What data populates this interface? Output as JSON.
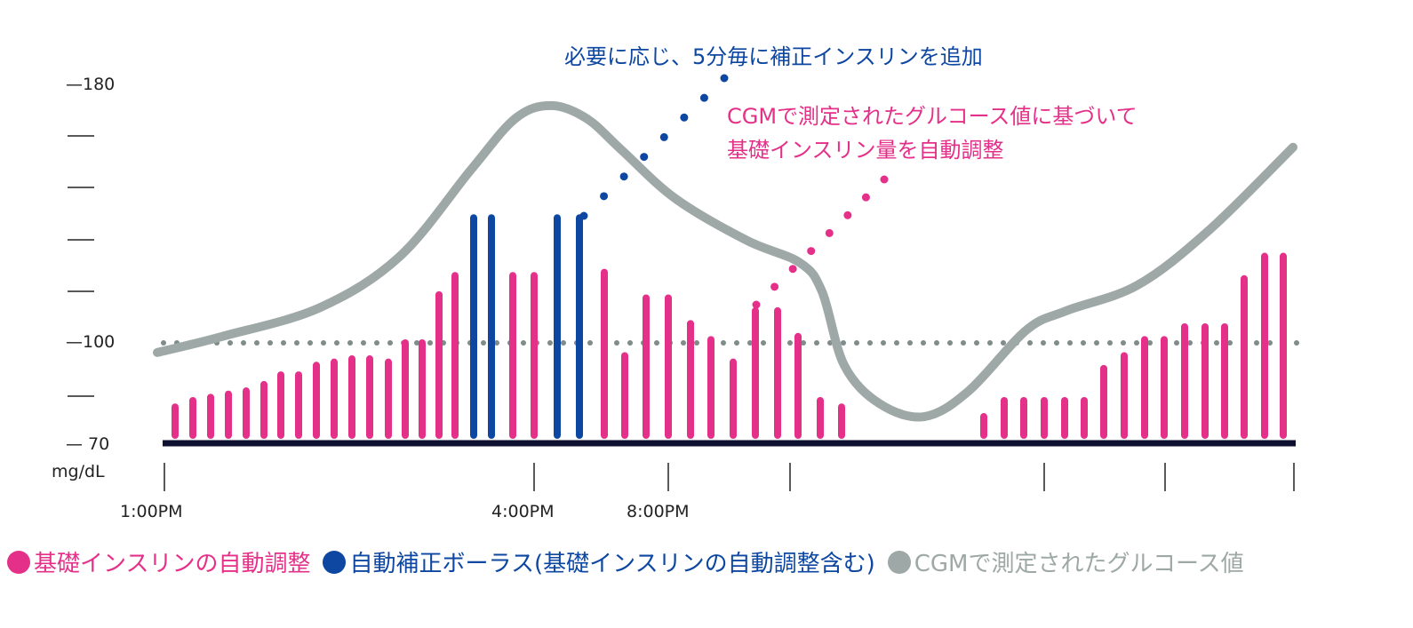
{
  "chart_data": {
    "type": "bar",
    "title": "",
    "ylabel": "mg/dL",
    "ylim": [
      70,
      180
    ],
    "y_tick_labels": [
      "180",
      "100",
      "70"
    ],
    "x_tick_labels": [
      "1:00PM",
      "4:00PM",
      "8:00PM"
    ],
    "reference_line": {
      "value": 100,
      "style": "dotted"
    },
    "series": [
      {
        "name": "基礎インスリンの自動調整",
        "color": "#e5308a",
        "note": "bars (pink); values read on the mg/dL scale"
      },
      {
        "name": "自動補正ボーラス(基礎インスリンの自動調整含む)",
        "color": "#0d47a1"
      },
      {
        "name": "CGMで測定されたグルコース値",
        "color": "#9ea8a6",
        "type": "line",
        "values": [
          97,
          102,
          111,
          127,
          154,
          170,
          174,
          170,
          160,
          145,
          132,
          125,
          116,
          93,
          81,
          77,
          85,
          104,
          110,
          118,
          135,
          161
        ]
      }
    ],
    "bars": [
      {
        "v": 80,
        "s": 0
      },
      {
        "v": 82,
        "s": 0
      },
      {
        "v": 83,
        "s": 0
      },
      {
        "v": 84,
        "s": 0
      },
      {
        "v": 85,
        "s": 0
      },
      {
        "v": 87,
        "s": 0
      },
      {
        "v": 90,
        "s": 0
      },
      {
        "v": 90,
        "s": 0
      },
      {
        "v": 93,
        "s": 0
      },
      {
        "v": 94,
        "s": 0
      },
      {
        "v": 95,
        "s": 0
      },
      {
        "v": 95,
        "s": 0
      },
      {
        "v": 94,
        "s": 0
      },
      {
        "v": 100,
        "s": 0
      },
      {
        "v": 100,
        "s": 0
      },
      {
        "v": 115,
        "s": 0
      },
      {
        "v": 121,
        "s": 0
      },
      {
        "v": 139,
        "s": 1
      },
      {
        "v": 139,
        "s": 1
      },
      {
        "v": 121,
        "s": 0
      },
      {
        "v": 121,
        "s": 0
      },
      {
        "v": 139,
        "s": 1
      },
      {
        "v": 139,
        "s": 1
      },
      {
        "v": 122,
        "s": 0
      },
      {
        "v": 96,
        "s": 0
      },
      {
        "v": 114,
        "s": 0
      },
      {
        "v": 114,
        "s": 0
      },
      {
        "v": 106,
        "s": 0
      },
      {
        "v": 101,
        "s": 0
      },
      {
        "v": 94,
        "s": 0
      },
      {
        "v": 110,
        "s": 0
      },
      {
        "v": 110,
        "s": 0
      },
      {
        "v": 102,
        "s": 0
      },
      {
        "v": 82,
        "s": 0
      },
      {
        "v": 80,
        "s": 0
      },
      {
        "v": 77,
        "s": 0
      },
      {
        "v": 82,
        "s": 0
      },
      {
        "v": 82,
        "s": 0
      },
      {
        "v": 82,
        "s": 0
      },
      {
        "v": 82,
        "s": 0
      },
      {
        "v": 82,
        "s": 0
      },
      {
        "v": 92,
        "s": 0
      },
      {
        "v": 96,
        "s": 0
      },
      {
        "v": 101,
        "s": 0
      },
      {
        "v": 101,
        "s": 0
      },
      {
        "v": 105,
        "s": 0
      },
      {
        "v": 105,
        "s": 0
      },
      {
        "v": 105,
        "s": 0
      },
      {
        "v": 120,
        "s": 0
      },
      {
        "v": 127,
        "s": 0
      },
      {
        "v": 127,
        "s": 0
      }
    ],
    "annotations": [
      {
        "text": "必要に応じ、5分毎に補正インスリンを追加",
        "color": "#0d47a1"
      },
      {
        "text": "CGMで測定されたグルコース値に基づいて",
        "text2": "基礎インスリン量を自動調整",
        "color": "#e5308a"
      }
    ]
  },
  "legend": [
    {
      "label": "基礎インスリンの自動調整",
      "color": "#e5308a"
    },
    {
      "label": "自動補正ボーラス(基礎インスリンの自動調整含む)",
      "color": "#0d47a1"
    },
    {
      "label": "CGMで測定されたグルコース値",
      "color": "#9ea8a6"
    }
  ]
}
